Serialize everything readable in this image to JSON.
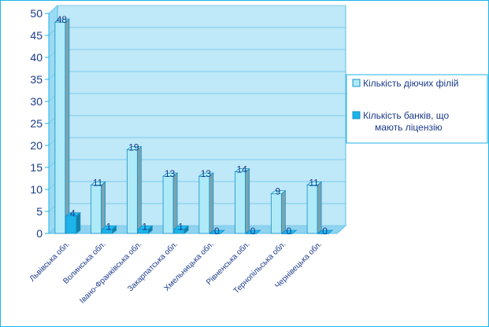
{
  "chart_data": {
    "type": "bar",
    "categories": [
      "Львівська обл.",
      "Волинська обл.",
      "Івано-Франківська обл.",
      "Закарпатська обл.",
      "Хмельницька обл.",
      "Рівненська обл.",
      "Тернопільська обл.",
      "Чернівецька обл."
    ],
    "series": [
      {
        "name": "Кількість діючих філій",
        "values": [
          48,
          11,
          19,
          13,
          13,
          14,
          9,
          11
        ],
        "color": "#aeeaf8"
      },
      {
        "name": "Кількість банків, що мають ліцензію",
        "values": [
          4,
          1,
          1,
          1,
          0,
          0,
          0,
          0
        ],
        "color": "#1cb4ea"
      }
    ],
    "legend_lines": [
      [
        "Кількість діючих філій"
      ],
      [
        "Кількість банків, що",
        "мають ліцензію"
      ]
    ],
    "ylim": [
      0,
      50
    ],
    "yticks": [
      0,
      5,
      10,
      15,
      20,
      25,
      30,
      35,
      40,
      45,
      50
    ],
    "grid": true,
    "legend_position": "right",
    "title": "",
    "xlabel": "",
    "ylabel": ""
  }
}
